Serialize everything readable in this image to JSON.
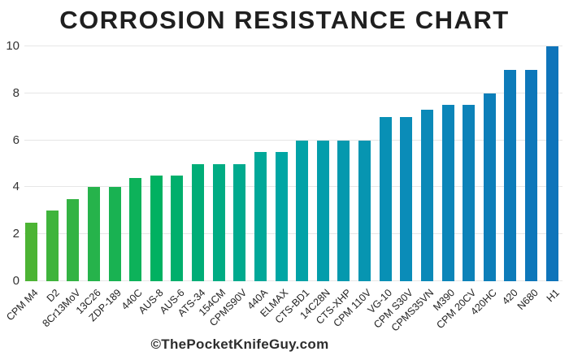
{
  "title": "CORROSION RESISTANCE CHART",
  "watermark": "©ThePocketKnifeGuy.com",
  "colors": {
    "background": "#ffffff",
    "title_text": "#1f1f1f",
    "axis_text": "#333333",
    "label_text": "#222222",
    "gridline": "#e6e6e6",
    "watermark_text": "#2d2d2d",
    "gradient_start_green": "#4CB434",
    "gradient_mid_teal": "#00A6A4",
    "gradient_end_blue": "#0E74BA"
  },
  "chart_data": {
    "type": "bar",
    "title": "CORROSION RESISTANCE CHART",
    "xlabel": "",
    "ylabel": "",
    "ylim": [
      0,
      10
    ],
    "yticks": [
      0,
      2,
      4,
      6,
      8,
      10
    ],
    "grid": true,
    "legend": false,
    "categories": [
      "CPM M4",
      "D2",
      "8Cr13MoV",
      "13C26",
      "ZDP-189",
      "440C",
      "AUS-8",
      "AUS-6",
      "ATS-34",
      "154CM",
      "CPMS90V",
      "440A",
      "ELMAX",
      "CTS-BD1",
      "14C28N",
      "CTS-XHP",
      "CPM 110V",
      "VG-10",
      "CPM S30V",
      "CPMS35VN",
      "M390",
      "CPM 20CV",
      "420HC",
      "420",
      "N680",
      "H1"
    ],
    "values": [
      2.5,
      3,
      3.5,
      4,
      4,
      4.4,
      4.5,
      4.5,
      5,
      5,
      5,
      5.5,
      5.5,
      6,
      6,
      6,
      6,
      7,
      7,
      7.3,
      7.5,
      7.5,
      8,
      9,
      9,
      10
    ],
    "bar_colors": [
      "#4CB434",
      "#3FB43C",
      "#33B343",
      "#26B34B",
      "#19B252",
      "#0DB25A",
      "#00B161",
      "#00AF6C",
      "#00AD77",
      "#00AC83",
      "#00AA8E",
      "#00A899",
      "#00A6A4",
      "#02A2A7",
      "#039DAB",
      "#0599AE",
      "#0795B1",
      "#0890B5",
      "#0A8CB8",
      "#0B89B8",
      "#0B85B9",
      "#0C82B9",
      "#0C7EB9",
      "#0D7BB9",
      "#0D77BA",
      "#0E74BA"
    ]
  }
}
